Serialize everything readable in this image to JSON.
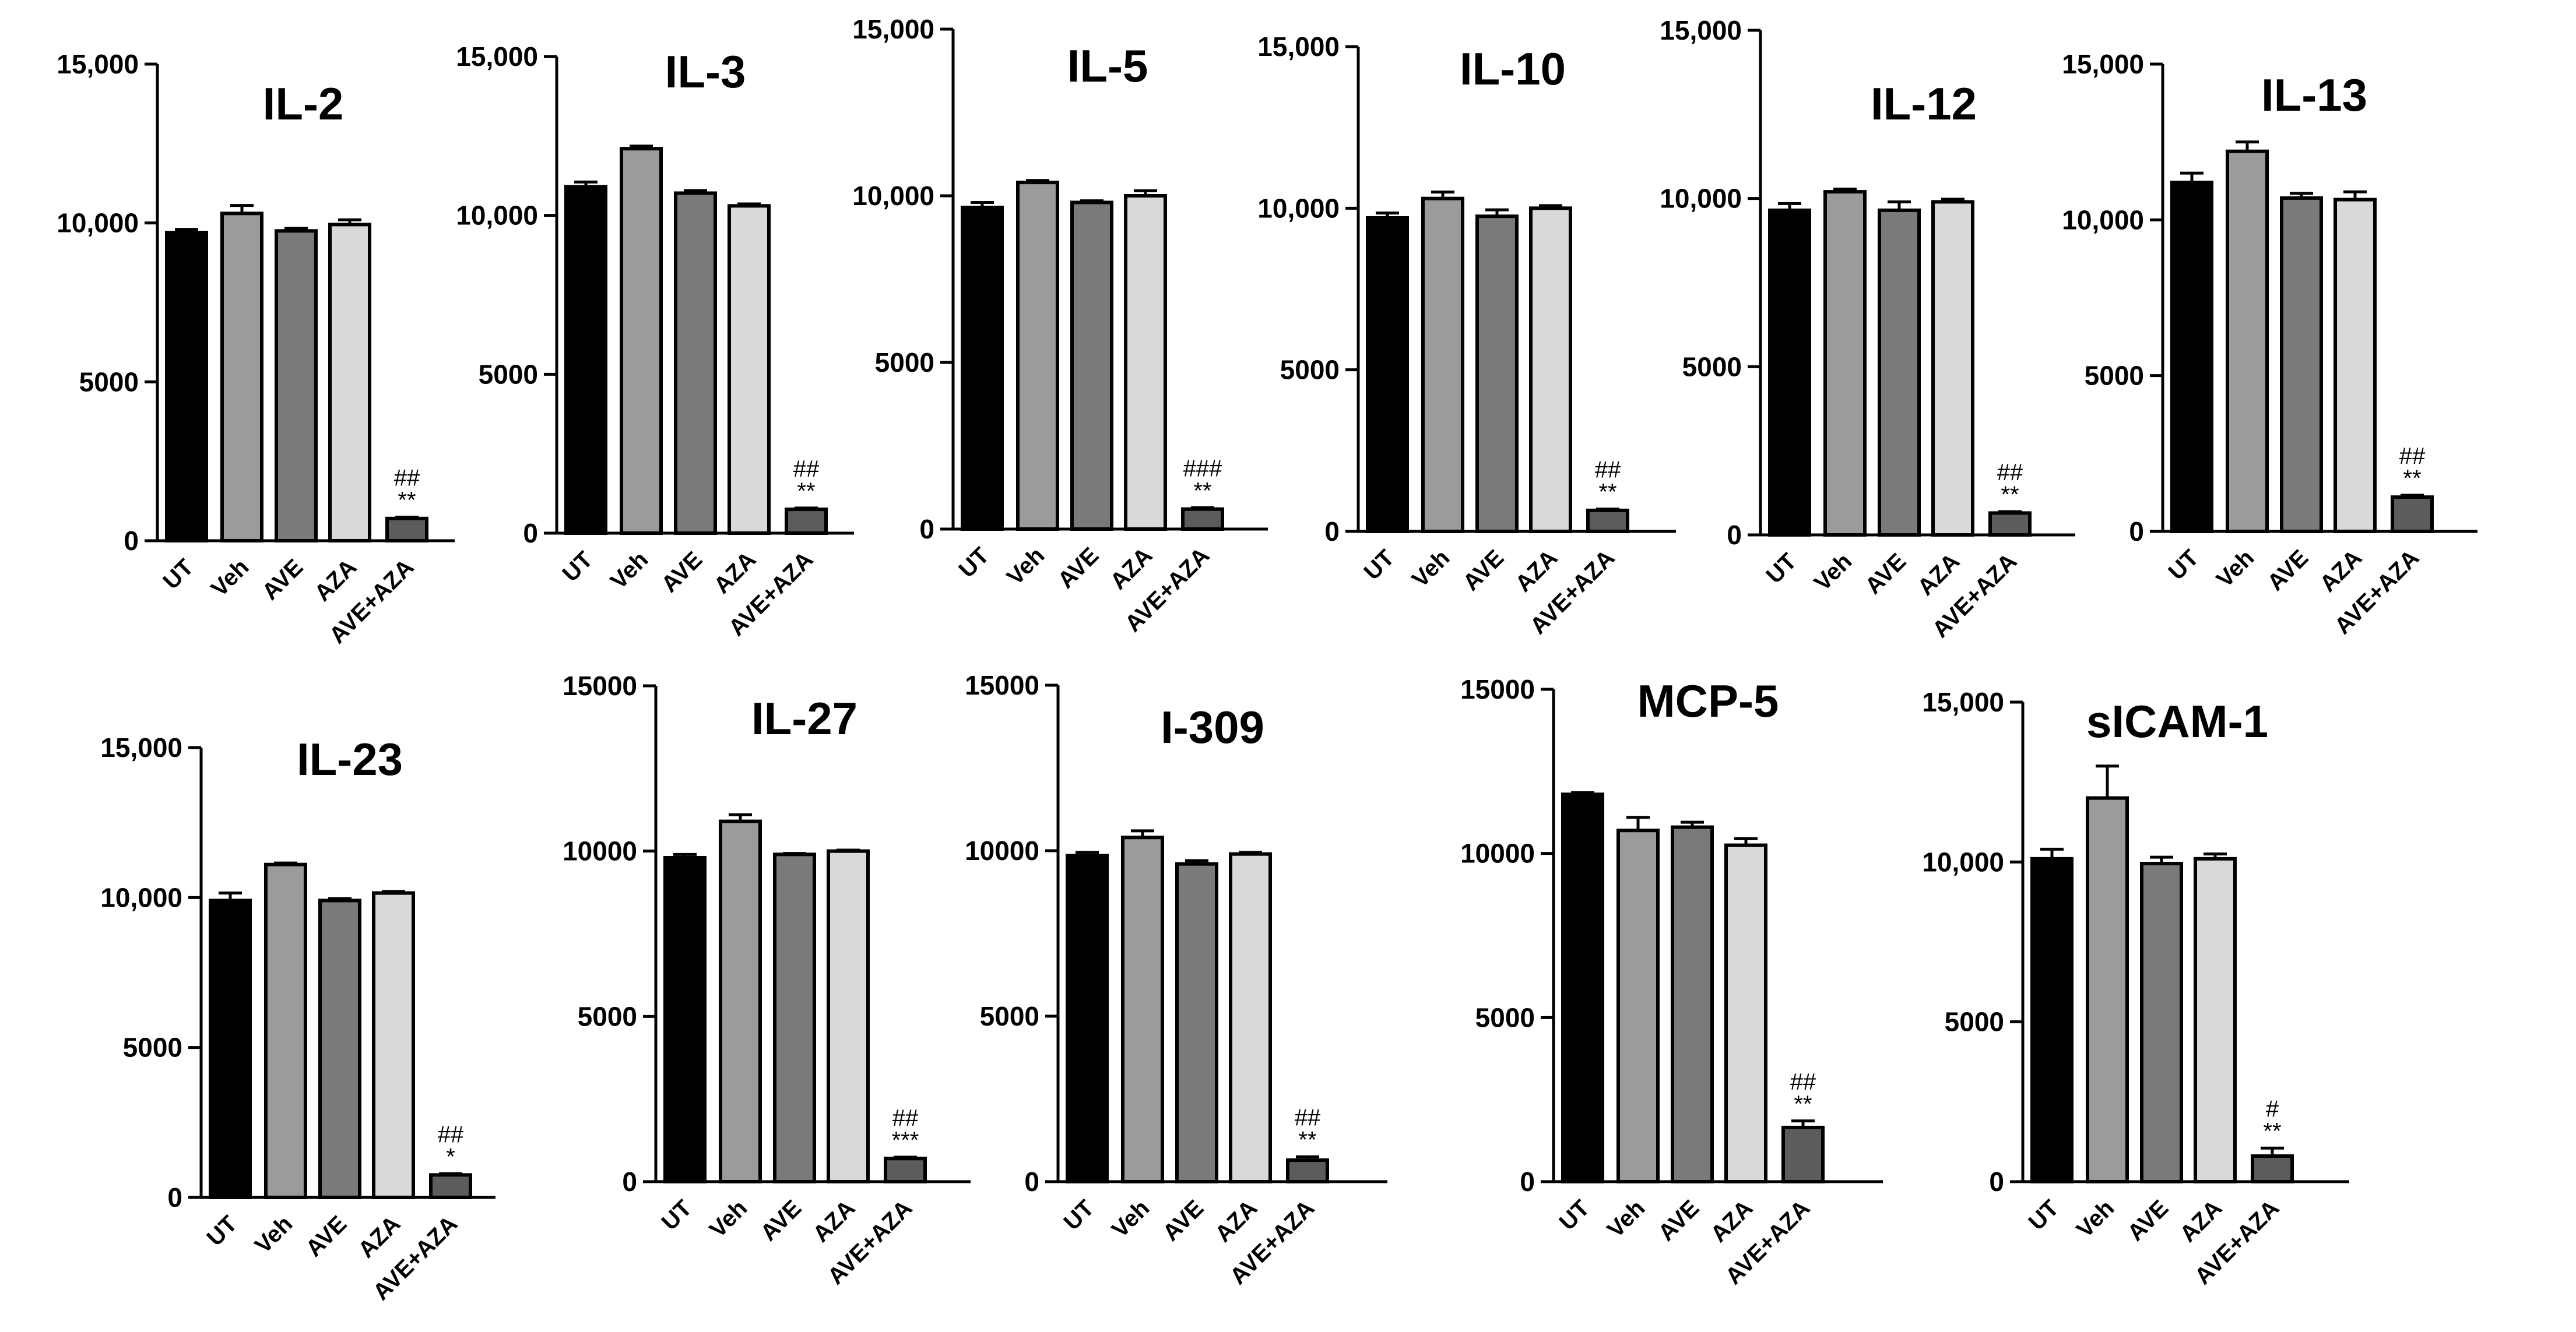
{
  "colors": {
    "UT": "#000000",
    "Veh": "#9b9b9b",
    "AVE": "#7a7a7a",
    "AZA": "#d9d9d9",
    "AVE+AZA": "#5c5c5c",
    "axis": "#000000",
    "bar_outline": "#000000",
    "background": "#ffffff"
  },
  "chart_data": [
    {
      "type": "bar",
      "title": "IL-2",
      "categories": [
        "UT",
        "Veh",
        "AVE",
        "AZA",
        "AVE+AZA"
      ],
      "values": [
        9700,
        10300,
        9750,
        9950,
        700
      ],
      "errors": [
        100,
        250,
        80,
        150,
        40
      ],
      "yticks": [
        "0",
        "5000",
        "10,000",
        "15,000"
      ],
      "ylim": [
        0,
        15000
      ],
      "annotations": [
        {
          "category": "AVE+AZA",
          "lines": [
            "##",
            "**"
          ]
        }
      ]
    },
    {
      "type": "bar",
      "title": "IL-3",
      "categories": [
        "UT",
        "Veh",
        "AVE",
        "AZA",
        "AVE+AZA"
      ],
      "values": [
        10900,
        12100,
        10700,
        10300,
        750
      ],
      "errors": [
        150,
        80,
        80,
        60,
        40
      ],
      "yticks": [
        "0",
        "5000",
        "10,000",
        "15,000"
      ],
      "ylim": [
        0,
        15000
      ],
      "annotations": [
        {
          "category": "AVE+AZA",
          "lines": [
            "##",
            "**"
          ]
        }
      ]
    },
    {
      "type": "bar",
      "title": "IL-5",
      "categories": [
        "UT",
        "Veh",
        "AVE",
        "AZA",
        "AVE+AZA"
      ],
      "values": [
        9650,
        10400,
        9800,
        10000,
        600
      ],
      "errors": [
        150,
        60,
        50,
        150,
        40
      ],
      "yticks": [
        "0",
        "5000",
        "10,000",
        "15,000"
      ],
      "ylim": [
        0,
        15000
      ],
      "annotations": [
        {
          "category": "AVE+AZA",
          "lines": [
            "###",
            "**"
          ]
        }
      ]
    },
    {
      "type": "bar",
      "title": "IL-10",
      "categories": [
        "UT",
        "Veh",
        "AVE",
        "AZA",
        "AVE+AZA"
      ],
      "values": [
        9700,
        10300,
        9750,
        10000,
        650
      ],
      "errors": [
        150,
        200,
        200,
        80,
        40
      ],
      "yticks": [
        "0",
        "5000",
        "10,000",
        "15,000"
      ],
      "ylim": [
        0,
        15000
      ],
      "annotations": [
        {
          "category": "AVE+AZA",
          "lines": [
            "##",
            "**"
          ]
        }
      ]
    },
    {
      "type": "bar",
      "title": "IL-12",
      "categories": [
        "UT",
        "Veh",
        "AVE",
        "AZA",
        "AVE+AZA"
      ],
      "values": [
        9650,
        10200,
        9650,
        9900,
        650
      ],
      "errors": [
        200,
        80,
        250,
        80,
        40
      ],
      "yticks": [
        "0",
        "5000",
        "10,000",
        "15,000"
      ],
      "ylim": [
        0,
        15000
      ],
      "annotations": [
        {
          "category": "AVE+AZA",
          "lines": [
            "##",
            "**"
          ]
        }
      ]
    },
    {
      "type": "bar",
      "title": "IL-13",
      "categories": [
        "UT",
        "Veh",
        "AVE",
        "AZA",
        "AVE+AZA"
      ],
      "values": [
        11200,
        12200,
        10700,
        10650,
        1100
      ],
      "errors": [
        300,
        300,
        150,
        250,
        60
      ],
      "yticks": [
        "0",
        "5000",
        "10,000",
        "15,000"
      ],
      "ylim": [
        0,
        15000
      ],
      "annotations": [
        {
          "category": "AVE+AZA",
          "lines": [
            "##",
            "**"
          ]
        }
      ]
    },
    {
      "type": "bar",
      "title": "IL-23",
      "categories": [
        "UT",
        "Veh",
        "AVE",
        "AZA",
        "AVE+AZA"
      ],
      "values": [
        9900,
        11100,
        9900,
        10150,
        750
      ],
      "errors": [
        250,
        50,
        60,
        50,
        40
      ],
      "yticks": [
        "0",
        "5000",
        "10,000",
        "15,000"
      ],
      "ylim": [
        0,
        15000
      ],
      "annotations": [
        {
          "category": "AVE+AZA",
          "lines": [
            "##",
            "*"
          ]
        }
      ]
    },
    {
      "type": "bar",
      "title": "IL-27",
      "categories": [
        "UT",
        "Veh",
        "AVE",
        "AZA",
        "AVE+AZA"
      ],
      "values": [
        9800,
        10900,
        9900,
        10000,
        700
      ],
      "errors": [
        100,
        200,
        30,
        30,
        40
      ],
      "yticks": [
        "0",
        "5000",
        "10000",
        "15000"
      ],
      "ylim": [
        0,
        15000
      ],
      "annotations": [
        {
          "category": "AVE+AZA",
          "lines": [
            "##",
            "***"
          ]
        }
      ]
    },
    {
      "type": "bar",
      "title": "I-309",
      "categories": [
        "UT",
        "Veh",
        "AVE",
        "AZA",
        "AVE+AZA"
      ],
      "values": [
        9850,
        10400,
        9600,
        9900,
        650
      ],
      "errors": [
        100,
        200,
        100,
        50,
        100
      ],
      "yticks": [
        "0",
        "5000",
        "10000",
        "15000"
      ],
      "ylim": [
        0,
        15000
      ],
      "annotations": [
        {
          "category": "AVE+AZA",
          "lines": [
            "##",
            "**"
          ]
        }
      ]
    },
    {
      "type": "bar",
      "title": "MCP-5",
      "categories": [
        "UT",
        "Veh",
        "AVE",
        "AZA",
        "AVE+AZA"
      ],
      "values": [
        11800,
        10700,
        10800,
        10250,
        1650
      ],
      "errors": [
        50,
        400,
        150,
        200,
        200
      ],
      "yticks": [
        "0",
        "5000",
        "10000",
        "15000"
      ],
      "ylim": [
        0,
        15000
      ],
      "annotations": [
        {
          "category": "AVE+AZA",
          "lines": [
            "##",
            "**"
          ]
        }
      ]
    },
    {
      "type": "bar",
      "title": "sICAM-1",
      "categories": [
        "UT",
        "Veh",
        "AVE",
        "AZA",
        "AVE+AZA"
      ],
      "values": [
        10100,
        12000,
        9950,
        10100,
        800
      ],
      "errors": [
        300,
        1000,
        200,
        150,
        250
      ],
      "yticks": [
        "0",
        "5000",
        "10,000",
        "15,000"
      ],
      "ylim": [
        0,
        15000
      ],
      "annotations": [
        {
          "category": "AVE+AZA",
          "lines": [
            "#",
            "**"
          ]
        }
      ]
    }
  ]
}
